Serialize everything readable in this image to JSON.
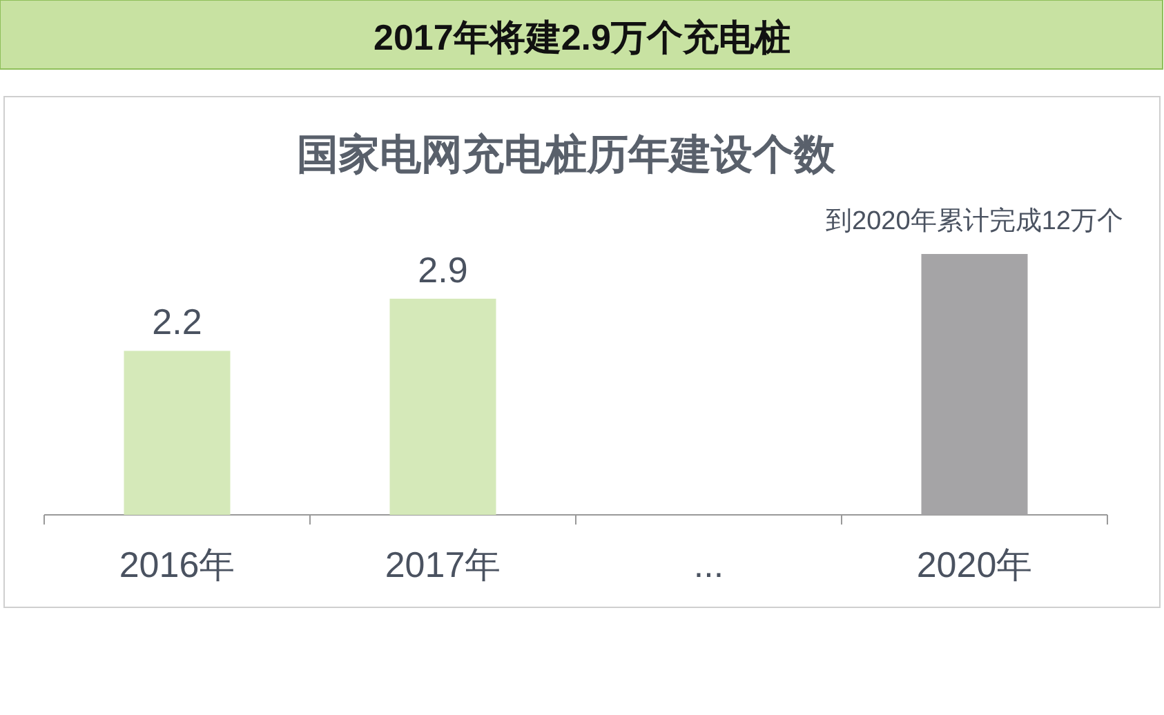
{
  "chart_data": {
    "type": "bar",
    "title": "2017年将建2.9万个充电桩",
    "subtitle": "国家电网充电桩历年建设个数",
    "categories": [
      "2016年",
      "2017年",
      "...",
      "2020年"
    ],
    "values": [
      2.2,
      2.9,
      null,
      3.5
    ],
    "colors": [
      "#d5e9b9",
      "#d5e9b9",
      null,
      "#a5a4a6"
    ],
    "value_labels": [
      "2.2",
      "2.9",
      null,
      null
    ],
    "annotations": [
      {
        "text": "到2020年累计完成12万个",
        "x": "2020年",
        "y": 3.5
      }
    ]
  }
}
